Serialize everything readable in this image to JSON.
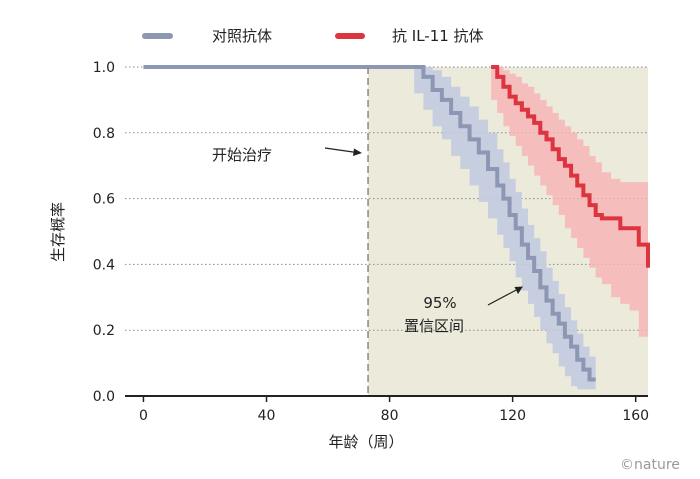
{
  "chart_data": {
    "type": "line",
    "xlabel": "年龄（周）",
    "ylabel": "生存概率",
    "xlim": [
      -6,
      164
    ],
    "ylim": [
      0,
      1.0
    ],
    "x_ticks": [
      "0",
      "40",
      "80",
      "120",
      "160"
    ],
    "x_tick_values": [
      0,
      40,
      80,
      120,
      160
    ],
    "y_ticks": [
      "0.0",
      "0.2",
      "0.4",
      "0.6",
      "0.8",
      "1.0"
    ],
    "y_tick_values": [
      0,
      0.2,
      0.4,
      0.6,
      0.8,
      1.0
    ],
    "grid": "horizontal dotted",
    "legend_position": "top-left",
    "treatment_start": 73,
    "annotations": {
      "treatment_label": "开始治疗",
      "ci_label_1": "95%",
      "ci_label_2": "置信区间"
    },
    "watermark": "©nature",
    "series": [
      {
        "name": "对照抗体",
        "color": "#8d97b3",
        "band_color": "#c1c9df",
        "x": [
          0,
          88,
          91,
          94,
          97,
          100,
          103,
          106,
          109,
          112,
          115,
          117,
          119,
          121,
          123,
          125,
          127,
          129,
          131,
          133,
          135,
          137,
          139,
          141,
          143,
          145,
          147
        ],
        "y": [
          1.0,
          1.0,
          0.97,
          0.93,
          0.9,
          0.86,
          0.82,
          0.78,
          0.74,
          0.69,
          0.64,
          0.6,
          0.55,
          0.51,
          0.46,
          0.42,
          0.38,
          0.33,
          0.29,
          0.25,
          0.22,
          0.18,
          0.15,
          0.11,
          0.08,
          0.05,
          0.05
        ],
        "ci_upper": [
          1.0,
          1.0,
          1.0,
          0.99,
          0.97,
          0.94,
          0.91,
          0.88,
          0.84,
          0.8,
          0.75,
          0.71,
          0.66,
          0.62,
          0.57,
          0.52,
          0.48,
          0.44,
          0.39,
          0.35,
          0.31,
          0.27,
          0.23,
          0.19,
          0.15,
          0.12,
          0.1
        ],
        "ci_lower": [
          1.0,
          1.0,
          0.92,
          0.87,
          0.82,
          0.78,
          0.73,
          0.69,
          0.64,
          0.59,
          0.54,
          0.49,
          0.45,
          0.41,
          0.36,
          0.32,
          0.28,
          0.24,
          0.2,
          0.16,
          0.13,
          0.09,
          0.06,
          0.03,
          0.02,
          0.02,
          0.02
        ]
      },
      {
        "name": "抗 IL-11 抗体",
        "color": "#dc3540",
        "band_color": "#f7b3b5",
        "x": [
          113,
          115,
          117,
          119,
          121,
          123,
          125,
          127,
          129,
          131,
          133,
          135,
          137,
          139,
          141,
          143,
          145,
          147,
          149,
          152,
          155,
          158,
          161,
          164
        ],
        "y": [
          1.0,
          0.97,
          0.94,
          0.91,
          0.89,
          0.87,
          0.85,
          0.83,
          0.8,
          0.78,
          0.75,
          0.72,
          0.7,
          0.67,
          0.64,
          0.61,
          0.58,
          0.55,
          0.54,
          0.54,
          0.51,
          0.51,
          0.46,
          0.39
        ],
        "ci_upper": [
          1.0,
          1.0,
          0.99,
          0.98,
          0.97,
          0.95,
          0.94,
          0.92,
          0.9,
          0.88,
          0.86,
          0.84,
          0.82,
          0.8,
          0.78,
          0.76,
          0.73,
          0.71,
          0.68,
          0.66,
          0.65,
          0.65,
          0.65,
          0.6
        ],
        "ci_lower": [
          1.0,
          0.9,
          0.86,
          0.82,
          0.79,
          0.76,
          0.73,
          0.7,
          0.67,
          0.64,
          0.61,
          0.58,
          0.55,
          0.51,
          0.48,
          0.45,
          0.42,
          0.39,
          0.36,
          0.34,
          0.3,
          0.28,
          0.26,
          0.18
        ]
      }
    ]
  }
}
